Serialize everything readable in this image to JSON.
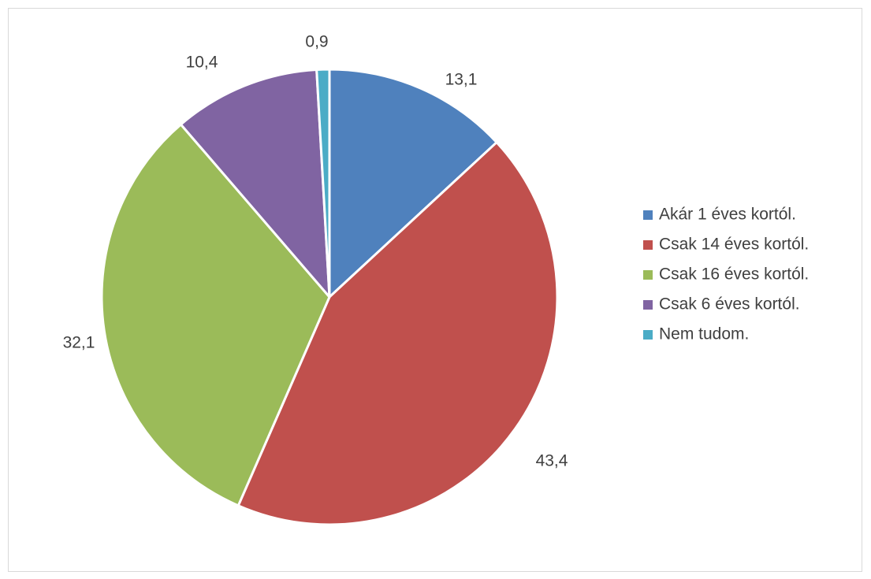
{
  "chart_data": {
    "type": "pie",
    "title": "",
    "categories": [
      "Akár 1 éves kortól.",
      "Csak 14 éves kortól.",
      "Csak 16 éves kortól.",
      "Csak 6 éves kortól.",
      "Nem tudom."
    ],
    "values": [
      13.1,
      43.4,
      32.1,
      10.4,
      0.9
    ],
    "data_labels": [
      "13,1",
      "43,4",
      "32,1",
      "10,4",
      "0,9"
    ],
    "colors": [
      "#4f81bd",
      "#c0504d",
      "#9bbb59",
      "#8064a2",
      "#4bacc6"
    ],
    "start_angle_deg": 0,
    "direction": "clockwise",
    "legend": {
      "position": "right",
      "entries": [
        "Akár 1 éves kortól.",
        "Csak 14 éves kortól.",
        "Csak 16 éves kortól.",
        "Csak 6 éves kortól.",
        "Nem tudom."
      ]
    }
  }
}
